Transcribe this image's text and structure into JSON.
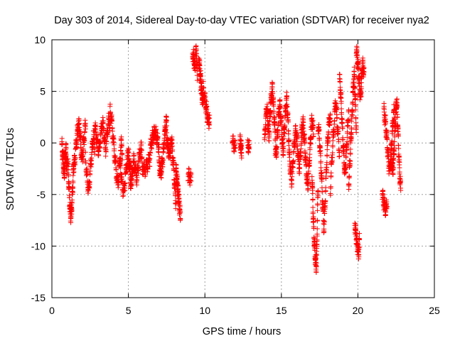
{
  "chart_data": {
    "type": "scatter",
    "title": "Day 303 of 2014, Sidereal Day-to-day VTEC variation (SDTVAR) for receiver nya2",
    "xlabel": "GPS time / hours",
    "ylabel": "SDTVAR / TECUs",
    "xlim": [
      0,
      25
    ],
    "ylim": [
      -15,
      10
    ],
    "xticks": [
      0,
      5,
      10,
      15,
      20,
      25
    ],
    "yticks": [
      -15,
      -10,
      -5,
      0,
      5,
      10
    ],
    "grid": true,
    "marker": "+",
    "series_color": "#ff0000",
    "series": [
      {
        "name": "SDTVAR",
        "segments": [
          {
            "x_start": 0.65,
            "x_end": 1.0,
            "points": [
              -0.2,
              -0.8,
              -1.5,
              -2.4,
              -3.2,
              -1.9,
              -1.1,
              -0.6,
              -2.0,
              -2.8
            ]
          },
          {
            "x_start": 1.05,
            "x_end": 1.45,
            "points": [
              -2.0,
              -3.5,
              -4.8,
              -6.0,
              -6.8,
              -7.1,
              -6.3,
              -5.2,
              -4.0,
              -2.5,
              -1.8
            ]
          },
          {
            "x_start": 1.45,
            "x_end": 2.2,
            "points": [
              -2.0,
              -1.5,
              -0.5,
              0.3,
              1.2,
              1.9,
              1.5,
              0.5,
              -0.8,
              -1.6,
              -0.9,
              0.2,
              1.1,
              1.8
            ]
          },
          {
            "x_start": 2.2,
            "x_end": 2.8,
            "points": [
              -1.5,
              -2.8,
              -3.8,
              -4.7,
              -3.5,
              -2.2,
              -1.0,
              0.0,
              0.7,
              -0.5
            ]
          },
          {
            "x_start": 2.8,
            "x_end": 3.8,
            "points": [
              1.6,
              1.0,
              0.3,
              -0.5,
              -0.8,
              0.4,
              1.2,
              2.0,
              1.4,
              0.2,
              -0.6,
              0.5,
              1.5,
              2.2,
              1.8
            ]
          },
          {
            "x_start": 3.8,
            "x_end": 4.6,
            "points": [
              3.2,
              2.5,
              1.5,
              0.2,
              -1.0,
              -2.2,
              -3.2,
              -4.0,
              -3.0,
              -1.5,
              0.0,
              -0.9
            ]
          },
          {
            "x_start": 4.4,
            "x_end": 5.2,
            "points": [
              -1.5,
              -2.5,
              -3.4,
              -4.2,
              -4.8,
              -3.9,
              -2.8,
              -1.9,
              -1.2,
              -2.2,
              -3.5,
              -4.5
            ]
          },
          {
            "x_start": 5.0,
            "x_end": 5.9,
            "points": [
              -1.0,
              -2.0,
              -2.8,
              -3.5,
              -2.6,
              -1.7,
              -2.2,
              -3.0,
              -3.4,
              -2.5,
              -1.6,
              -1.0,
              -0.5,
              -1.2
            ]
          },
          {
            "x_start": 5.9,
            "x_end": 6.4,
            "points": [
              -2.3,
              -2.6,
              -2.5,
              -2.2,
              -1.9,
              -1.7
            ]
          },
          {
            "x_start": 6.4,
            "x_end": 7.0,
            "points": [
              -0.8,
              -0.3,
              0.2,
              0.6,
              0.9,
              1.1,
              0.8,
              0.4,
              0.0,
              -0.4
            ]
          },
          {
            "x_start": 7.0,
            "x_end": 7.5,
            "points": [
              -2.0,
              -2.5,
              -3.1,
              -2.4,
              -1.8,
              -1.2,
              0.2,
              1.0,
              1.8,
              2.1
            ]
          },
          {
            "x_start": 7.5,
            "x_end": 8.1,
            "points": [
              0.5,
              0.0,
              -0.6,
              -1.2,
              -0.8,
              -0.2,
              0.5,
              -1.0,
              -2.0,
              -3.3,
              -4.8,
              -5.7
            ]
          },
          {
            "x_start": 8.1,
            "x_end": 8.4,
            "points": [
              -2.5,
              -3.0,
              -3.6,
              -4.2,
              -4.8,
              -5.4,
              -6.0,
              -6.6,
              -7.1
            ]
          },
          {
            "x_start": 8.9,
            "x_end": 9.1,
            "points": [
              -3.1,
              -3.3,
              -3.6
            ]
          },
          {
            "x_start": 9.2,
            "x_end": 9.5,
            "points": [
              8.8,
              8.3,
              7.8,
              7.2,
              8.6,
              9.1,
              5.8
            ]
          },
          {
            "x_start": 9.6,
            "x_end": 9.9,
            "points": [
              8.2,
              7.5,
              6.8,
              6.0,
              5.3,
              4.6,
              4.2,
              4.5
            ]
          },
          {
            "x_start": 9.9,
            "x_end": 10.3,
            "points": [
              5.2,
              4.6,
              3.9,
              3.3,
              2.6,
              2.0,
              2.4
            ]
          },
          {
            "x_start": 11.8,
            "x_end": 12.0,
            "points": [
              0.1,
              -0.2,
              -0.6
            ]
          },
          {
            "x_start": 12.3,
            "x_end": 12.4,
            "points": [
              0.2,
              -0.3,
              -0.8
            ]
          },
          {
            "x_start": 12.8,
            "x_end": 12.9,
            "points": [
              -0.1,
              -0.6
            ]
          },
          {
            "x_start": 13.9,
            "x_end": 14.6,
            "points": [
              0.0,
              1.5,
              2.6,
              3.4,
              2.8,
              1.6,
              0.5,
              2.0,
              3.2,
              4.0,
              4.8,
              5.3,
              4.2,
              3.0,
              1.8,
              0.8
            ]
          },
          {
            "x_start": 14.6,
            "x_end": 15.5,
            "points": [
              -0.5,
              -1.2,
              -0.3,
              1.0,
              2.2,
              3.2,
              3.6,
              2.8,
              1.6,
              0.3,
              -1.0,
              0.2,
              1.5,
              2.6,
              3.8,
              4.2,
              3.0,
              1.5,
              0.0
            ]
          },
          {
            "x_start": 15.5,
            "x_end": 16.3,
            "points": [
              -1.0,
              -2.0,
              -3.0,
              -3.6,
              -2.5,
              -1.2,
              -0.2,
              0.8,
              1.2,
              0.3,
              -0.8,
              -1.8,
              -2.5,
              -1.2,
              0.2
            ]
          },
          {
            "x_start": 16.3,
            "x_end": 17.1,
            "points": [
              0.5,
              1.5,
              2.0,
              1.2,
              0.0,
              -1.2,
              -2.5,
              -3.5,
              -4.2,
              -3.0,
              -1.5,
              -0.2,
              1.0,
              2.2,
              1.8,
              0.6
            ]
          },
          {
            "x_start": 17.0,
            "x_end": 17.4,
            "points": [
              -3.0,
              -5.0,
              -7.2,
              -8.5,
              -9.8,
              -10.8,
              -11.6,
              -11.9,
              -10.2,
              -6.5,
              -4.5
            ]
          },
          {
            "x_start": 17.4,
            "x_end": 18.2,
            "points": [
              1.8,
              1.0,
              0.0,
              -1.5,
              -3.0,
              -4.8,
              -6.5,
              -8.2,
              -7.0,
              -5.0,
              -3.0,
              -1.0,
              0.5,
              1.5,
              2.5,
              2.0
            ]
          },
          {
            "x_start": 18.2,
            "x_end": 18.8,
            "points": [
              -4.6,
              -2.5,
              -0.8,
              0.8,
              2.2,
              4.2,
              3.0,
              1.5,
              0.3,
              -1.0
            ]
          },
          {
            "x_start": 18.8,
            "x_end": 19.4,
            "points": [
              6.2,
              5.5,
              4.0,
              2.5,
              1.0,
              -0.5,
              -1.8,
              -3.0,
              -2.2,
              -0.8,
              0.6,
              2.0,
              3.2
            ]
          },
          {
            "x_start": 19.4,
            "x_end": 19.9,
            "points": [
              -4.0,
              -2.8,
              -1.5,
              0.2,
              1.5,
              3.0,
              4.5,
              6.0,
              6.6,
              5.0,
              3.2,
              1.2
            ]
          },
          {
            "x_start": 19.8,
            "x_end": 20.1,
            "points": [
              -7.8,
              -8.5,
              -9.2,
              -9.8,
              -10.3,
              -10.6,
              -9.5
            ]
          },
          {
            "x_start": 19.9,
            "x_end": 20.4,
            "points": [
              9.2,
              8.4,
              7.7,
              7.0,
              6.0,
              5.0,
              4.3,
              5.5,
              6.8,
              7.6,
              7.3,
              6.5
            ]
          },
          {
            "x_start": 21.6,
            "x_end": 21.9,
            "points": [
              -5.0,
              -5.6,
              -6.2,
              -6.5,
              -6.0
            ]
          },
          {
            "x_start": 21.7,
            "x_end": 22.4,
            "points": [
              3.2,
              2.5,
              1.8,
              1.0,
              0.0,
              -1.2,
              -2.2,
              -2.6,
              -1.8,
              -0.5,
              0.8,
              2.0,
              3.0,
              2.2
            ]
          },
          {
            "x_start": 22.2,
            "x_end": 22.8,
            "points": [
              -1.5,
              -2.2,
              -2.6,
              -1.8,
              -0.4,
              1.0,
              2.4,
              3.6,
              3.9,
              2.5,
              0.8,
              -0.8,
              -2.5,
              -3.6,
              -4.5
            ]
          }
        ]
      }
    ]
  }
}
